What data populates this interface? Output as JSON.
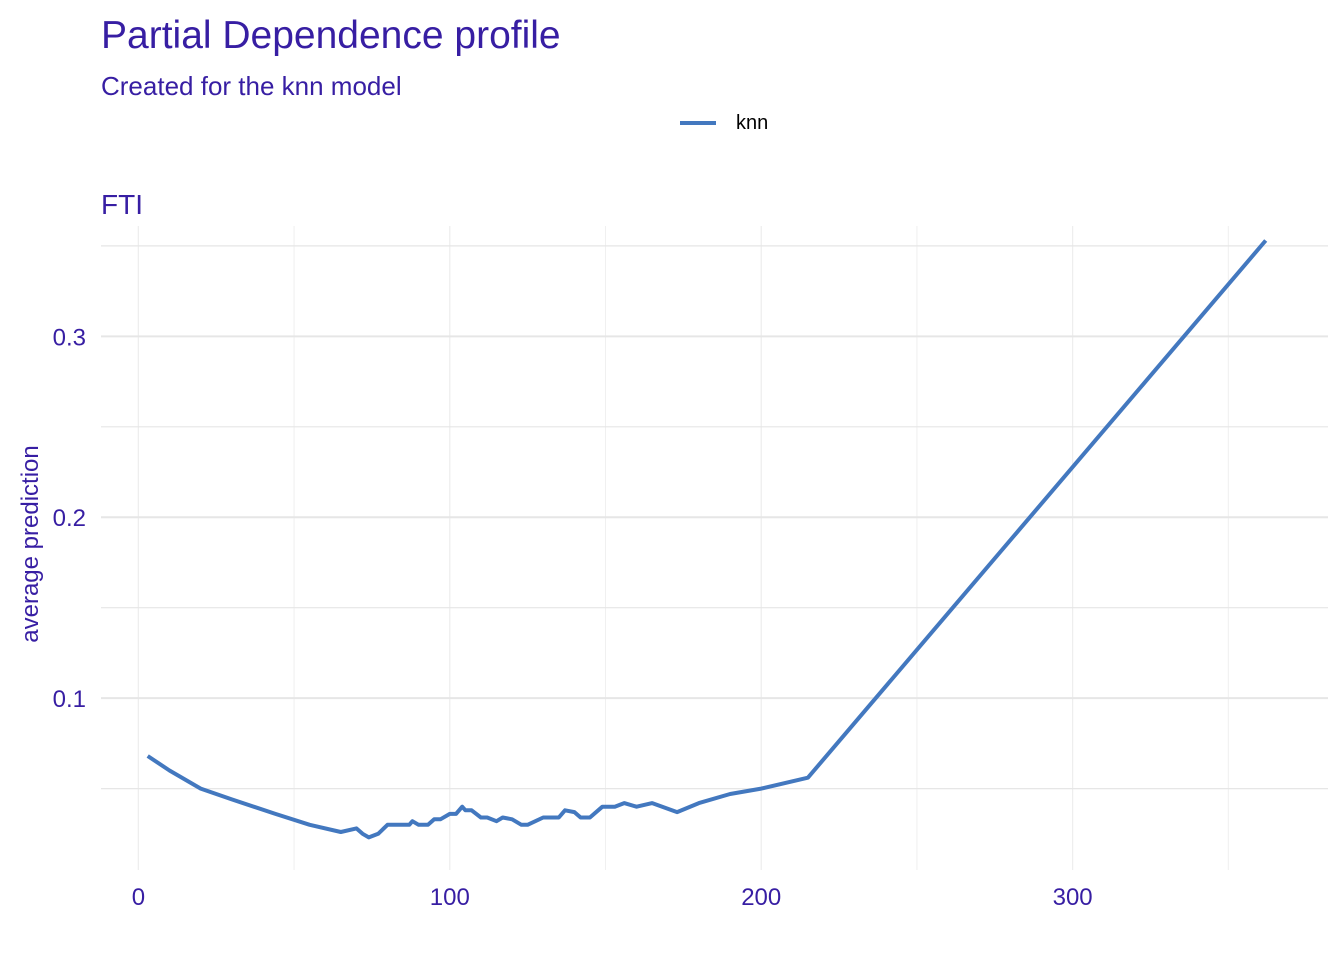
{
  "title": "Partial Dependence profile",
  "subtitle": "Created for the knn model",
  "legend": {
    "label": "knn",
    "color": "#4378bf"
  },
  "colors": {
    "text": "#371ea3",
    "grid": "#e6e6e6",
    "line": "#4378bf",
    "background": "#ffffff"
  },
  "chart_data": {
    "type": "line",
    "title": "Partial Dependence profile",
    "subtitle": "Created for the knn model",
    "panel_title": "FTI",
    "xlabel": "",
    "ylabel": "average prediction",
    "xlim": [
      -12,
      382
    ],
    "ylim": [
      0.005,
      0.361
    ],
    "xticks": [
      0,
      100,
      200,
      300
    ],
    "xtick_labels": [
      "0",
      "100",
      "200",
      "300"
    ],
    "yticks": [
      0.1,
      0.2,
      0.3
    ],
    "ytick_labels": [
      "0.1",
      "0.2",
      "0.3"
    ],
    "grid": true,
    "legend_position": "top",
    "series": [
      {
        "name": "knn",
        "color": "#4378bf",
        "x": [
          3,
          10,
          20,
          30,
          44,
          55,
          65,
          70,
          72,
          74,
          77,
          80,
          82,
          87,
          88,
          90,
          93,
          95,
          97,
          100,
          102,
          104,
          105,
          107,
          110,
          112,
          115,
          117,
          120,
          123,
          125,
          130,
          135,
          137,
          140,
          142,
          145,
          149,
          153,
          156,
          160,
          165,
          173,
          180,
          190,
          200,
          215,
          362
        ],
        "y": [
          0.068,
          0.06,
          0.05,
          0.044,
          0.036,
          0.03,
          0.026,
          0.028,
          0.025,
          0.023,
          0.025,
          0.03,
          0.03,
          0.03,
          0.032,
          0.03,
          0.03,
          0.033,
          0.033,
          0.036,
          0.036,
          0.04,
          0.038,
          0.038,
          0.034,
          0.034,
          0.032,
          0.034,
          0.033,
          0.03,
          0.03,
          0.034,
          0.034,
          0.038,
          0.037,
          0.034,
          0.034,
          0.04,
          0.04,
          0.042,
          0.04,
          0.042,
          0.037,
          0.042,
          0.047,
          0.05,
          0.056,
          0.353
        ]
      }
    ]
  }
}
